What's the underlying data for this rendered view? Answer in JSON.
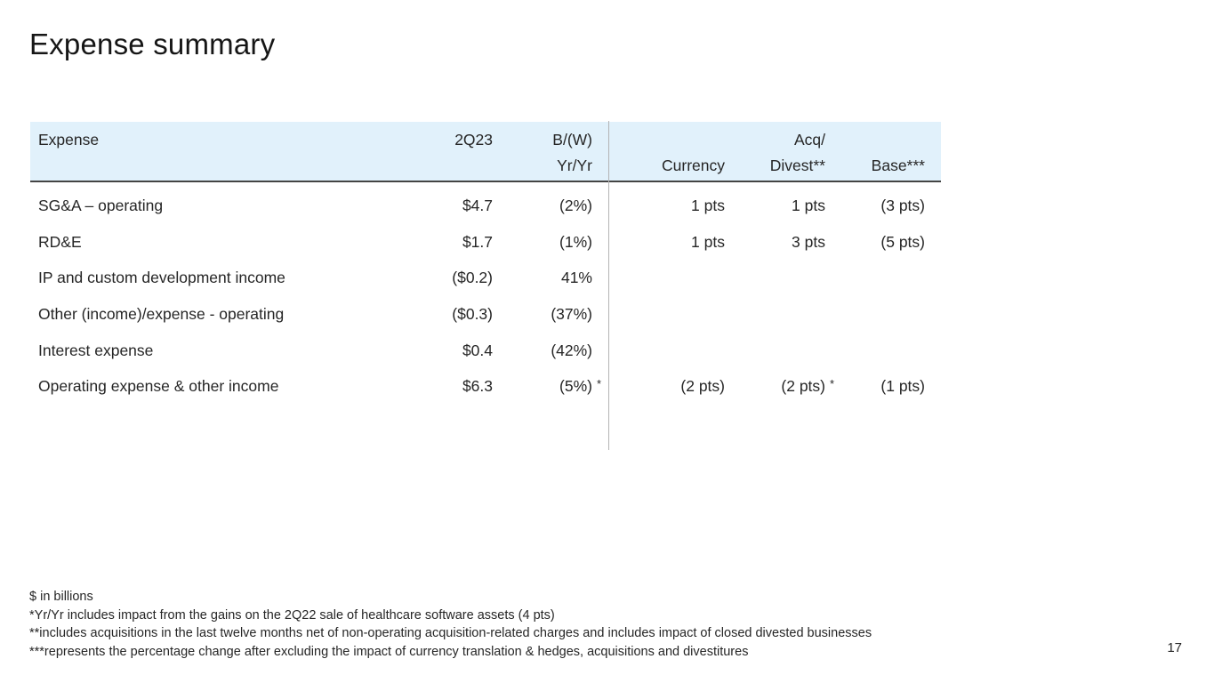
{
  "title": "Expense summary",
  "table": {
    "header": {
      "expense": "Expense",
      "q": "2Q23",
      "bw_top": "B/(W)",
      "bw_bottom": "Yr/Yr",
      "acq_top": "Acq/",
      "currency": "Currency",
      "divest": "Divest**",
      "base": "Base***"
    },
    "rows": [
      {
        "label": "SG&A – operating",
        "q": "$4.7",
        "yy": "(2%)",
        "yy_sup": "",
        "currency": "1 pts",
        "divest": "1 pts",
        "divest_sup": "",
        "base": "(3 pts)"
      },
      {
        "label": "RD&E",
        "q": "$1.7",
        "yy": "(1%)",
        "yy_sup": "",
        "currency": "1 pts",
        "divest": "3 pts",
        "divest_sup": "",
        "base": "(5 pts)"
      },
      {
        "label": "IP and custom development income",
        "q": "($0.2)",
        "yy": "41%",
        "yy_sup": "",
        "currency": "",
        "divest": "",
        "divest_sup": "",
        "base": ""
      },
      {
        "label": "Other (income)/expense - operating",
        "q": "($0.3)",
        "yy": "(37%)",
        "yy_sup": "",
        "currency": "",
        "divest": "",
        "divest_sup": "",
        "base": ""
      },
      {
        "label": "Interest expense",
        "q": "$0.4",
        "yy": "(42%)",
        "yy_sup": "",
        "currency": "",
        "divest": "",
        "divest_sup": "",
        "base": ""
      },
      {
        "label": "Operating expense & other income",
        "q": "$6.3",
        "yy": "(5%)",
        "yy_sup": "*",
        "currency": "(2 pts)",
        "divest": "(2 pts)",
        "divest_sup": "*",
        "base": "(1 pts)"
      }
    ]
  },
  "footnotes": [
    "$ in billions",
    "*Yr/Yr includes impact from the gains on the 2Q22 sale of healthcare software assets (4 pts)",
    "**includes acquisitions in the last twelve months net of non-operating acquisition-related charges and includes impact of closed divested businesses",
    "***represents the percentage change after excluding the impact of currency translation & hedges, acquisitions and divestitures"
  ],
  "page_number": "17",
  "colors": {
    "header_bg": "#e1f1fb",
    "header_rule": "#444444",
    "divider_line": "#b3b3b3",
    "text": "#262626",
    "title": "#161616"
  }
}
